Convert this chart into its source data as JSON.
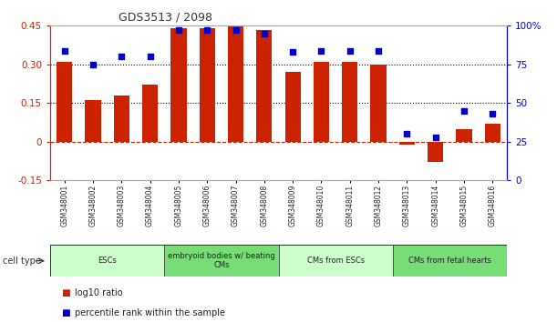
{
  "title": "GDS3513 / 2098",
  "samples": [
    "GSM348001",
    "GSM348002",
    "GSM348003",
    "GSM348004",
    "GSM348005",
    "GSM348006",
    "GSM348007",
    "GSM348008",
    "GSM348009",
    "GSM348010",
    "GSM348011",
    "GSM348012",
    "GSM348013",
    "GSM348014",
    "GSM348015",
    "GSM348016"
  ],
  "log10_ratio": [
    0.31,
    0.16,
    0.18,
    0.22,
    0.44,
    0.44,
    0.45,
    0.435,
    0.27,
    0.31,
    0.31,
    0.3,
    -0.01,
    -0.08,
    0.05,
    0.07
  ],
  "percentile_rank": [
    84,
    75,
    80,
    80,
    97,
    97,
    97,
    95,
    83,
    84,
    84,
    84,
    30,
    28,
    45,
    43
  ],
  "bar_color": "#cc2200",
  "dot_color": "#0000cc",
  "ylim_left": [
    -0.15,
    0.45
  ],
  "ylim_right": [
    0,
    100
  ],
  "yticks_left": [
    -0.15,
    0,
    0.15,
    0.3,
    0.45
  ],
  "yticks_right": [
    0,
    25,
    50,
    75,
    100
  ],
  "ytick_labels_left": [
    "-0.15",
    "0",
    "0.15",
    "0.30",
    "0.45"
  ],
  "ytick_labels_right": [
    "0",
    "25",
    "50",
    "75",
    "100%"
  ],
  "hlines": [
    0.15,
    0.3
  ],
  "zero_line_color": "#cc2200",
  "hline_color": "#000000",
  "cell_groups": [
    {
      "label": "ESCs",
      "start": 0,
      "end": 3,
      "color": "#ccffcc"
    },
    {
      "label": "embryoid bodies w/ beating\nCMs",
      "start": 4,
      "end": 7,
      "color": "#77dd77"
    },
    {
      "label": "CMs from ESCs",
      "start": 8,
      "end": 11,
      "color": "#ccffcc"
    },
    {
      "label": "CMs from fetal hearts",
      "start": 12,
      "end": 15,
      "color": "#77dd77"
    }
  ],
  "cell_type_label": "cell type",
  "legend_items": [
    {
      "color": "#cc2200",
      "label": "log10 ratio"
    },
    {
      "color": "#0000cc",
      "label": "percentile rank within the sample"
    }
  ],
  "bar_width": 0.55,
  "background_color": "#ffffff",
  "left_axis_color": "#cc2200",
  "right_axis_color": "#0000cc"
}
